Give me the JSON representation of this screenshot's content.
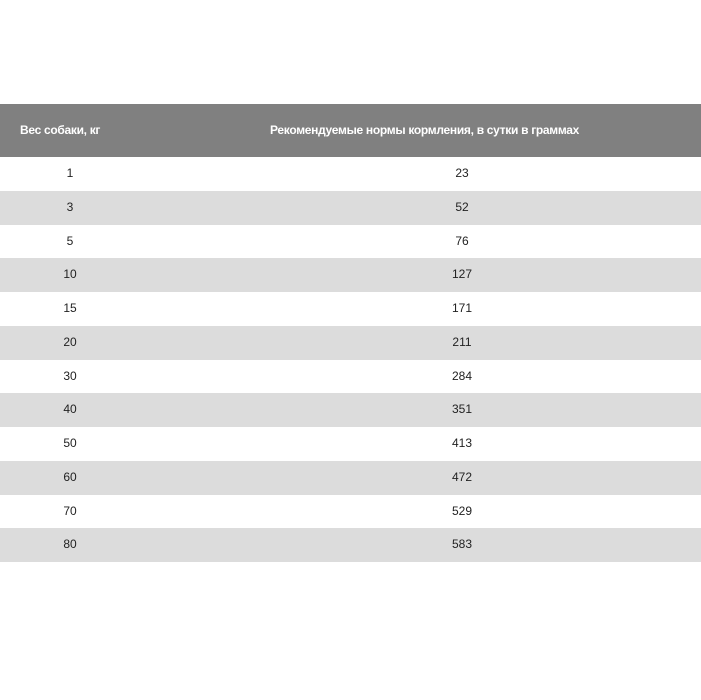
{
  "table": {
    "headers": [
      "Вес собаки, кг",
      "Рекомендуемые нормы кормления, в сутки в граммах"
    ],
    "rows": [
      [
        "1",
        "23"
      ],
      [
        "3",
        "52"
      ],
      [
        "5",
        "76"
      ],
      [
        "10",
        "127"
      ],
      [
        "15",
        "171"
      ],
      [
        "20",
        "211"
      ],
      [
        "30",
        "284"
      ],
      [
        "40",
        "351"
      ],
      [
        "50",
        "413"
      ],
      [
        "60",
        "472"
      ],
      [
        "70",
        "529"
      ],
      [
        "80",
        "583"
      ]
    ]
  },
  "colors": {
    "header_bg": "#808080",
    "stripe": "#dcdcdc"
  }
}
